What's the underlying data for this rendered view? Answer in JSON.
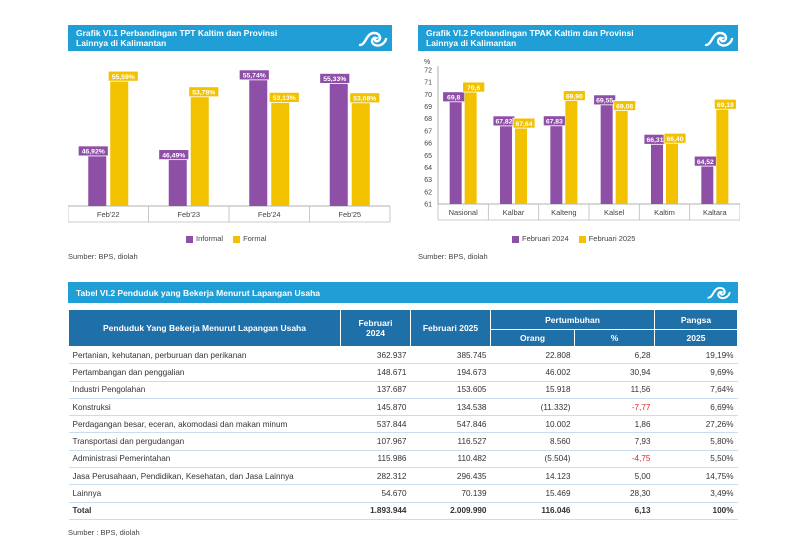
{
  "chart1": {
    "title_line1": "Grafik VI.1 Perbandingan TPT Kaltim dan Provinsi",
    "title_line2": "Lainnya di Kalimantan",
    "source": "Sumber: BPS, diolah",
    "chart_data": {
      "type": "bar",
      "categories": [
        "Feb'22",
        "Feb'23",
        "Feb'24",
        "Feb'25"
      ],
      "series": [
        {
          "name": "Informal",
          "values": [
            46.92,
            46.49,
            55.74,
            55.33
          ],
          "labels": [
            "46,92%",
            "46,49%",
            "55,74%",
            "55,33%"
          ],
          "color": "#8e4fa6"
        },
        {
          "name": "Formal",
          "values": [
            55.59,
            53.78,
            53.13,
            53.08
          ],
          "labels": [
            "55,59%",
            "53,78%",
            "53,13%",
            "53,08%"
          ],
          "color": "#f2c200"
        }
      ],
      "ylim": [
        41,
        57
      ],
      "legend": "bottom"
    }
  },
  "chart2": {
    "title_line1": "Grafik VI.2 Perbandingan TPAK Kaltim dan Provinsi",
    "title_line2": "Lainnya di Kalimantan",
    "source": "Sumber: BPS, diolah",
    "chart_data": {
      "type": "bar",
      "categories": [
        "Nasional",
        "Kalbar",
        "Kalteng",
        "Kalsel",
        "Kaltim",
        "Kaltara"
      ],
      "series": [
        {
          "name": "Februari 2024",
          "values": [
            69.8,
            67.82,
            67.83,
            69.55,
            66.31,
            64.52
          ],
          "labels": [
            "69,8",
            "67,82",
            "67,83",
            "69,55",
            "66,31",
            "64,52"
          ],
          "color": "#8e4fa6"
        },
        {
          "name": "Februari 2025",
          "values": [
            70.6,
            67.64,
            69.9,
            69.08,
            66.4,
            69.19
          ],
          "labels": [
            "70,6",
            "67,64",
            "69,90",
            "69,08",
            "66,40",
            "69,19"
          ],
          "color": "#f2c200"
        }
      ],
      "yunit": "%",
      "ylim": [
        61,
        72
      ],
      "yticks": [
        61,
        62,
        63,
        64,
        65,
        66,
        67,
        68,
        69,
        70,
        71,
        72
      ],
      "legend": "bottom"
    }
  },
  "table": {
    "title": "Tabel VI.2 Penduduk yang Bekerja Menurut Lapangan Usaha",
    "headers": {
      "sector": "Penduduk Yang Bekerja Menurut Lapangan Usaha",
      "feb2024_line1": "Februari",
      "feb2024_line2": "2024",
      "feb2025": "Februari 2025",
      "growth": "Pertumbuhan",
      "growth_people": "Orang",
      "growth_pct": "%",
      "share": "Pangsa",
      "share_year": "2025"
    },
    "rows": [
      {
        "sector": "Pertanian, kehutanan, perburuan dan perikanan",
        "feb2024": "362.937",
        "feb2025": "385.745",
        "people": "22.808",
        "pct": "6,28",
        "share": "19,19%",
        "neg": false
      },
      {
        "sector": "Pertambangan dan penggalian",
        "feb2024": "148.671",
        "feb2025": "194.673",
        "people": "46.002",
        "pct": "30,94",
        "share": "9,69%",
        "neg": false
      },
      {
        "sector": "Industri Pengolahan",
        "feb2024": "137.687",
        "feb2025": "153.605",
        "people": "15.918",
        "pct": "11,56",
        "share": "7,64%",
        "neg": false
      },
      {
        "sector": "Konstruksi",
        "feb2024": "145.870",
        "feb2025": "134.538",
        "people": "(11.332)",
        "pct": "-7,77",
        "share": "6,69%",
        "neg": true
      },
      {
        "sector": "Perdagangan besar, eceran, akomodasi dan makan minum",
        "feb2024": "537.844",
        "feb2025": "547.846",
        "people": "10.002",
        "pct": "1,86",
        "share": "27,26%",
        "neg": false
      },
      {
        "sector": "Transportasi dan pergudangan",
        "feb2024": "107.967",
        "feb2025": "116.527",
        "people": "8.560",
        "pct": "7,93",
        "share": "5,80%",
        "neg": false
      },
      {
        "sector": "Administrasi Pemerintahan",
        "feb2024": "115.986",
        "feb2025": "110.482",
        "people": "(5.504)",
        "pct": "-4,75",
        "share": "5,50%",
        "neg": true
      },
      {
        "sector": "Jasa Perusahaan, Pendidikan, Kesehatan, dan Jasa Lainnya",
        "feb2024": "282.312",
        "feb2025": "296.435",
        "people": "14.123",
        "pct": "5,00",
        "share": "14,75%",
        "neg": false
      },
      {
        "sector": "Lainnya",
        "feb2024": "54.670",
        "feb2025": "70.139",
        "people": "15.469",
        "pct": "28,30",
        "share": "3,49%",
        "neg": false
      }
    ],
    "total": {
      "sector": "Total",
      "feb2024": "1.893.944",
      "feb2025": "2.009.990",
      "people": "116.046",
      "pct": "6,13",
      "share": "100%"
    },
    "source": "Sumber : BPS, diolah"
  }
}
